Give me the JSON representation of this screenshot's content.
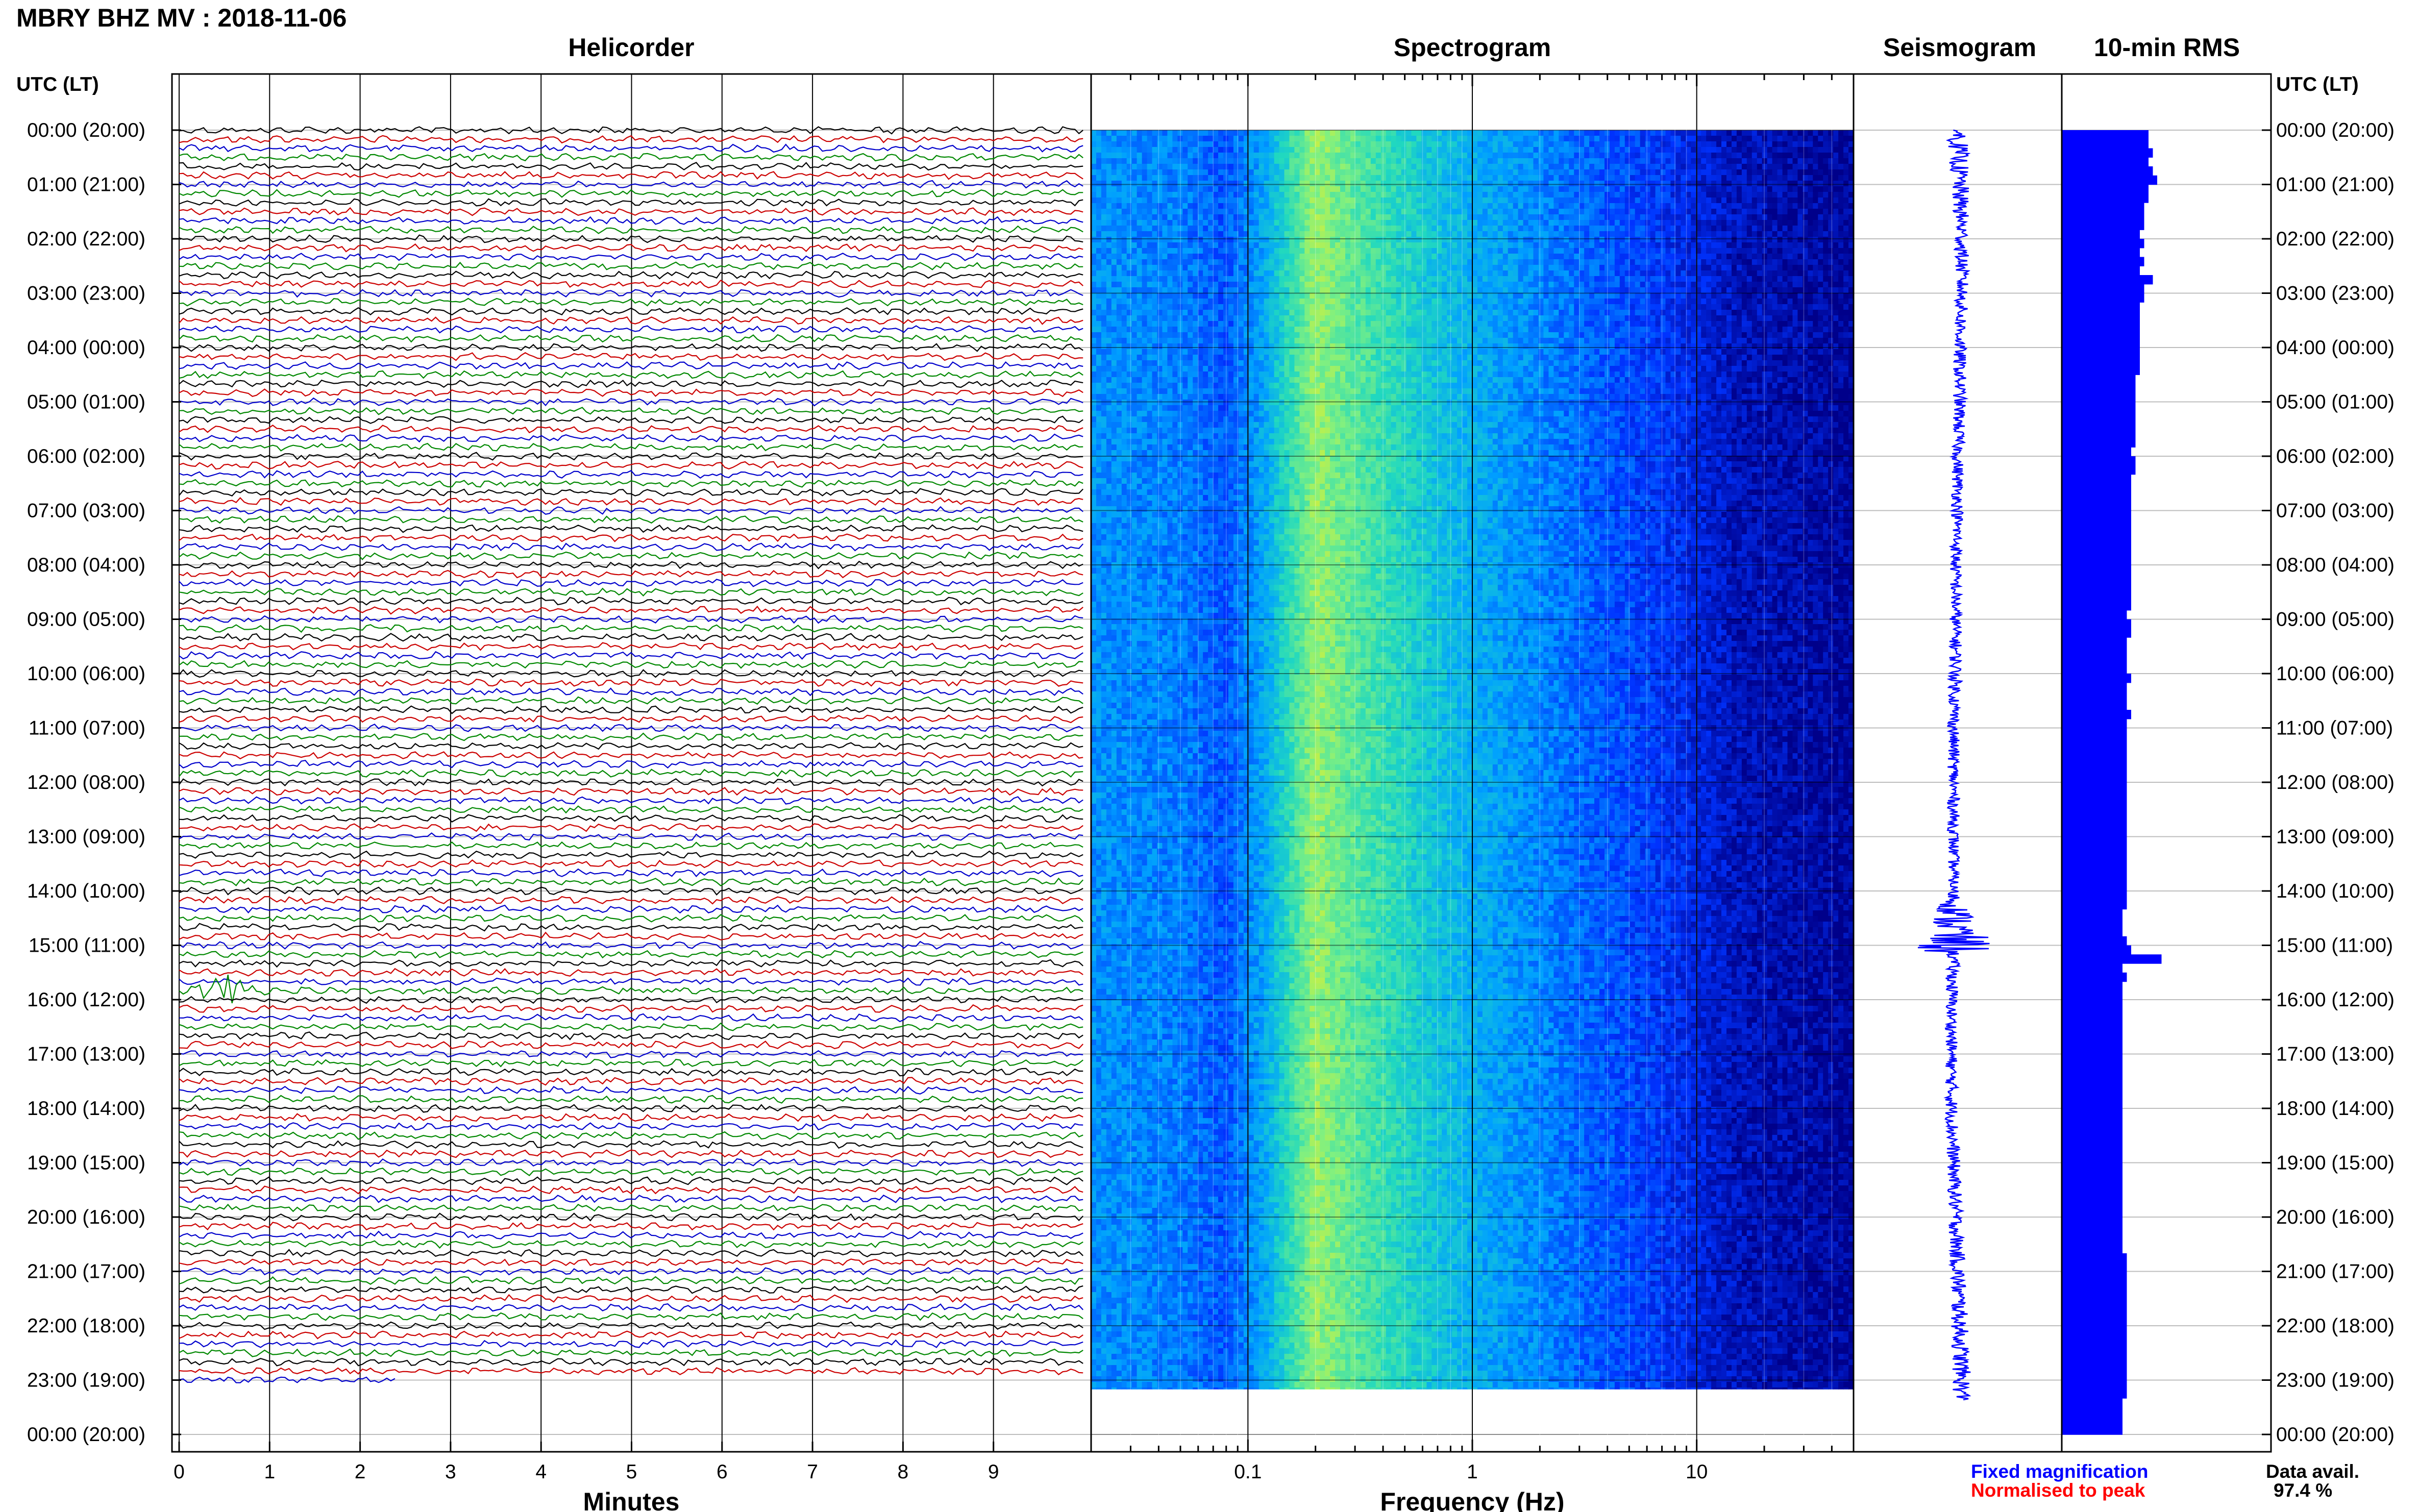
{
  "title": "MBRY BHZ MV : 2018-11-06",
  "panels": {
    "helicorder": "Helicorder",
    "spectrogram": "Spectrogram",
    "seismogram": "Seismogram",
    "rms": "10-min RMS"
  },
  "time_axis_label": "UTC (LT)",
  "hour_labels": [
    "00:00 (20:00)",
    "01:00 (21:00)",
    "02:00 (22:00)",
    "03:00 (23:00)",
    "04:00 (00:00)",
    "05:00 (01:00)",
    "06:00 (02:00)",
    "07:00 (03:00)",
    "08:00 (04:00)",
    "09:00 (05:00)",
    "10:00 (06:00)",
    "11:00 (07:00)",
    "12:00 (08:00)",
    "13:00 (09:00)",
    "14:00 (10:00)",
    "15:00 (11:00)",
    "16:00 (12:00)",
    "17:00 (13:00)",
    "18:00 (14:00)",
    "19:00 (15:00)",
    "20:00 (16:00)",
    "21:00 (17:00)",
    "22:00 (18:00)",
    "23:00 (19:00)",
    "00:00 (20:00)"
  ],
  "xlabels": {
    "helicorder": "Minutes",
    "spectrogram": "Frequency (Hz)"
  },
  "legend": {
    "fixed": "Fixed magnification",
    "normalised": "Normalised to peak",
    "fixed_color": "#0000ff",
    "normalised_color": "#ff0000",
    "avail_label": "Data avail.",
    "avail_value": "97.4 %"
  },
  "chart_data": [
    {
      "type": "line",
      "name": "Helicorder",
      "xlabel": "Minutes",
      "xlim": [
        0,
        10
      ],
      "x_ticks": [
        0,
        1,
        2,
        3,
        4,
        5,
        6,
        7,
        8,
        9
      ],
      "rows_per_hour": 6,
      "trace_colors": [
        "#000000",
        "#cc0000",
        "#0000cc",
        "#008800"
      ],
      "data_end": {
        "hour": 23,
        "minute": 2.4
      },
      "events": [
        {
          "hour": 15,
          "minute": 0.5,
          "note": "largest signal in record"
        }
      ]
    },
    {
      "type": "heatmap",
      "name": "Spectrogram",
      "xlabel": "Frequency (Hz)",
      "xscale": "log",
      "xlim": [
        0.02,
        50
      ],
      "x_tick_labels": [
        {
          "value": 0.1,
          "label": "0.1"
        },
        {
          "value": 1,
          "label": "1"
        },
        {
          "value": 10,
          "label": "10"
        }
      ],
      "peak_band_hz": [
        0.15,
        0.3
      ],
      "colormap": [
        "#00008a",
        "#0033ff",
        "#00a0ff",
        "#20d8c0",
        "#80f080",
        "#f0f020"
      ],
      "spectrum_profile": [
        {
          "f": 0.02,
          "level": 0.38
        },
        {
          "f": 0.05,
          "level": 0.34
        },
        {
          "f": 0.08,
          "level": 0.26
        },
        {
          "f": 0.12,
          "level": 0.44
        },
        {
          "f": 0.2,
          "level": 0.84
        },
        {
          "f": 0.3,
          "level": 0.72
        },
        {
          "f": 0.6,
          "level": 0.55
        },
        {
          "f": 1,
          "level": 0.45
        },
        {
          "f": 3,
          "level": 0.3
        },
        {
          "f": 7,
          "level": 0.2
        },
        {
          "f": 15,
          "level": 0.08
        },
        {
          "f": 50,
          "level": 0.02
        }
      ],
      "data_end": {
        "hour": 23,
        "minute": 10
      }
    },
    {
      "type": "line",
      "name": "Seismogram",
      "color": "#0000ff",
      "amplitude_by_hour": [
        1.6,
        1.4,
        1.1,
        1.0,
        1.0,
        1.0,
        0.9,
        0.9,
        0.9,
        0.9,
        1.0,
        0.9,
        0.9,
        0.9,
        0.8,
        6.0,
        0.9,
        0.9,
        1.0,
        1.0,
        1.1,
        1.2,
        1.3,
        1.4
      ],
      "offset_by_hour": [
        0.0,
        0.1,
        0.2,
        0.2,
        0.1,
        0.1,
        0.0,
        0.0,
        -0.1,
        -0.1,
        -0.1,
        -0.2,
        -0.2,
        -0.2,
        -0.2,
        -0.2,
        -0.3,
        -0.3,
        -0.3,
        -0.2,
        -0.1,
        0.0,
        0.1,
        0.2
      ]
    },
    {
      "type": "bar",
      "name": "10-min RMS",
      "color": "#0000ff",
      "interval_minutes": 10,
      "values": [
        1.0,
        1.0,
        1.05,
        1.0,
        1.05,
        1.1,
        1.0,
        1.0,
        0.95,
        0.95,
        0.95,
        0.9,
        0.95,
        0.9,
        0.95,
        0.9,
        1.05,
        0.95,
        0.95,
        0.9,
        0.9,
        0.9,
        0.9,
        0.9,
        0.9,
        0.9,
        0.9,
        0.85,
        0.85,
        0.85,
        0.85,
        0.85,
        0.85,
        0.85,
        0.85,
        0.8,
        0.85,
        0.85,
        0.8,
        0.8,
        0.8,
        0.8,
        0.8,
        0.8,
        0.8,
        0.8,
        0.8,
        0.8,
        0.8,
        0.8,
        0.8,
        0.8,
        0.8,
        0.75,
        0.8,
        0.8,
        0.75,
        0.75,
        0.75,
        0.75,
        0.8,
        0.75,
        0.75,
        0.75,
        0.8,
        0.75,
        0.75,
        0.75,
        0.75,
        0.75,
        0.75,
        0.75,
        0.75,
        0.75,
        0.75,
        0.75,
        0.75,
        0.75,
        0.75,
        0.75,
        0.75,
        0.75,
        0.75,
        0.75,
        0.75,
        0.75,
        0.7,
        0.7,
        0.7,
        0.75,
        0.8,
        1.15,
        0.7,
        0.75,
        0.7,
        0.7,
        0.7,
        0.7,
        0.7,
        0.7,
        0.7,
        0.7,
        0.7,
        0.7,
        0.7,
        0.7,
        0.7,
        0.7,
        0.7,
        0.7,
        0.7,
        0.7,
        0.7,
        0.7,
        0.7,
        0.7,
        0.7,
        0.7,
        0.7,
        0.7,
        0.7,
        0.7,
        0.7,
        0.7,
        0.75,
        0.75,
        0.75,
        0.75,
        0.75,
        0.75,
        0.75,
        0.75,
        0.75,
        0.75,
        0.75,
        0.75,
        0.75,
        0.75,
        0.75,
        0.75,
        0.7,
        0.7,
        0.7,
        0.7
      ]
    }
  ]
}
